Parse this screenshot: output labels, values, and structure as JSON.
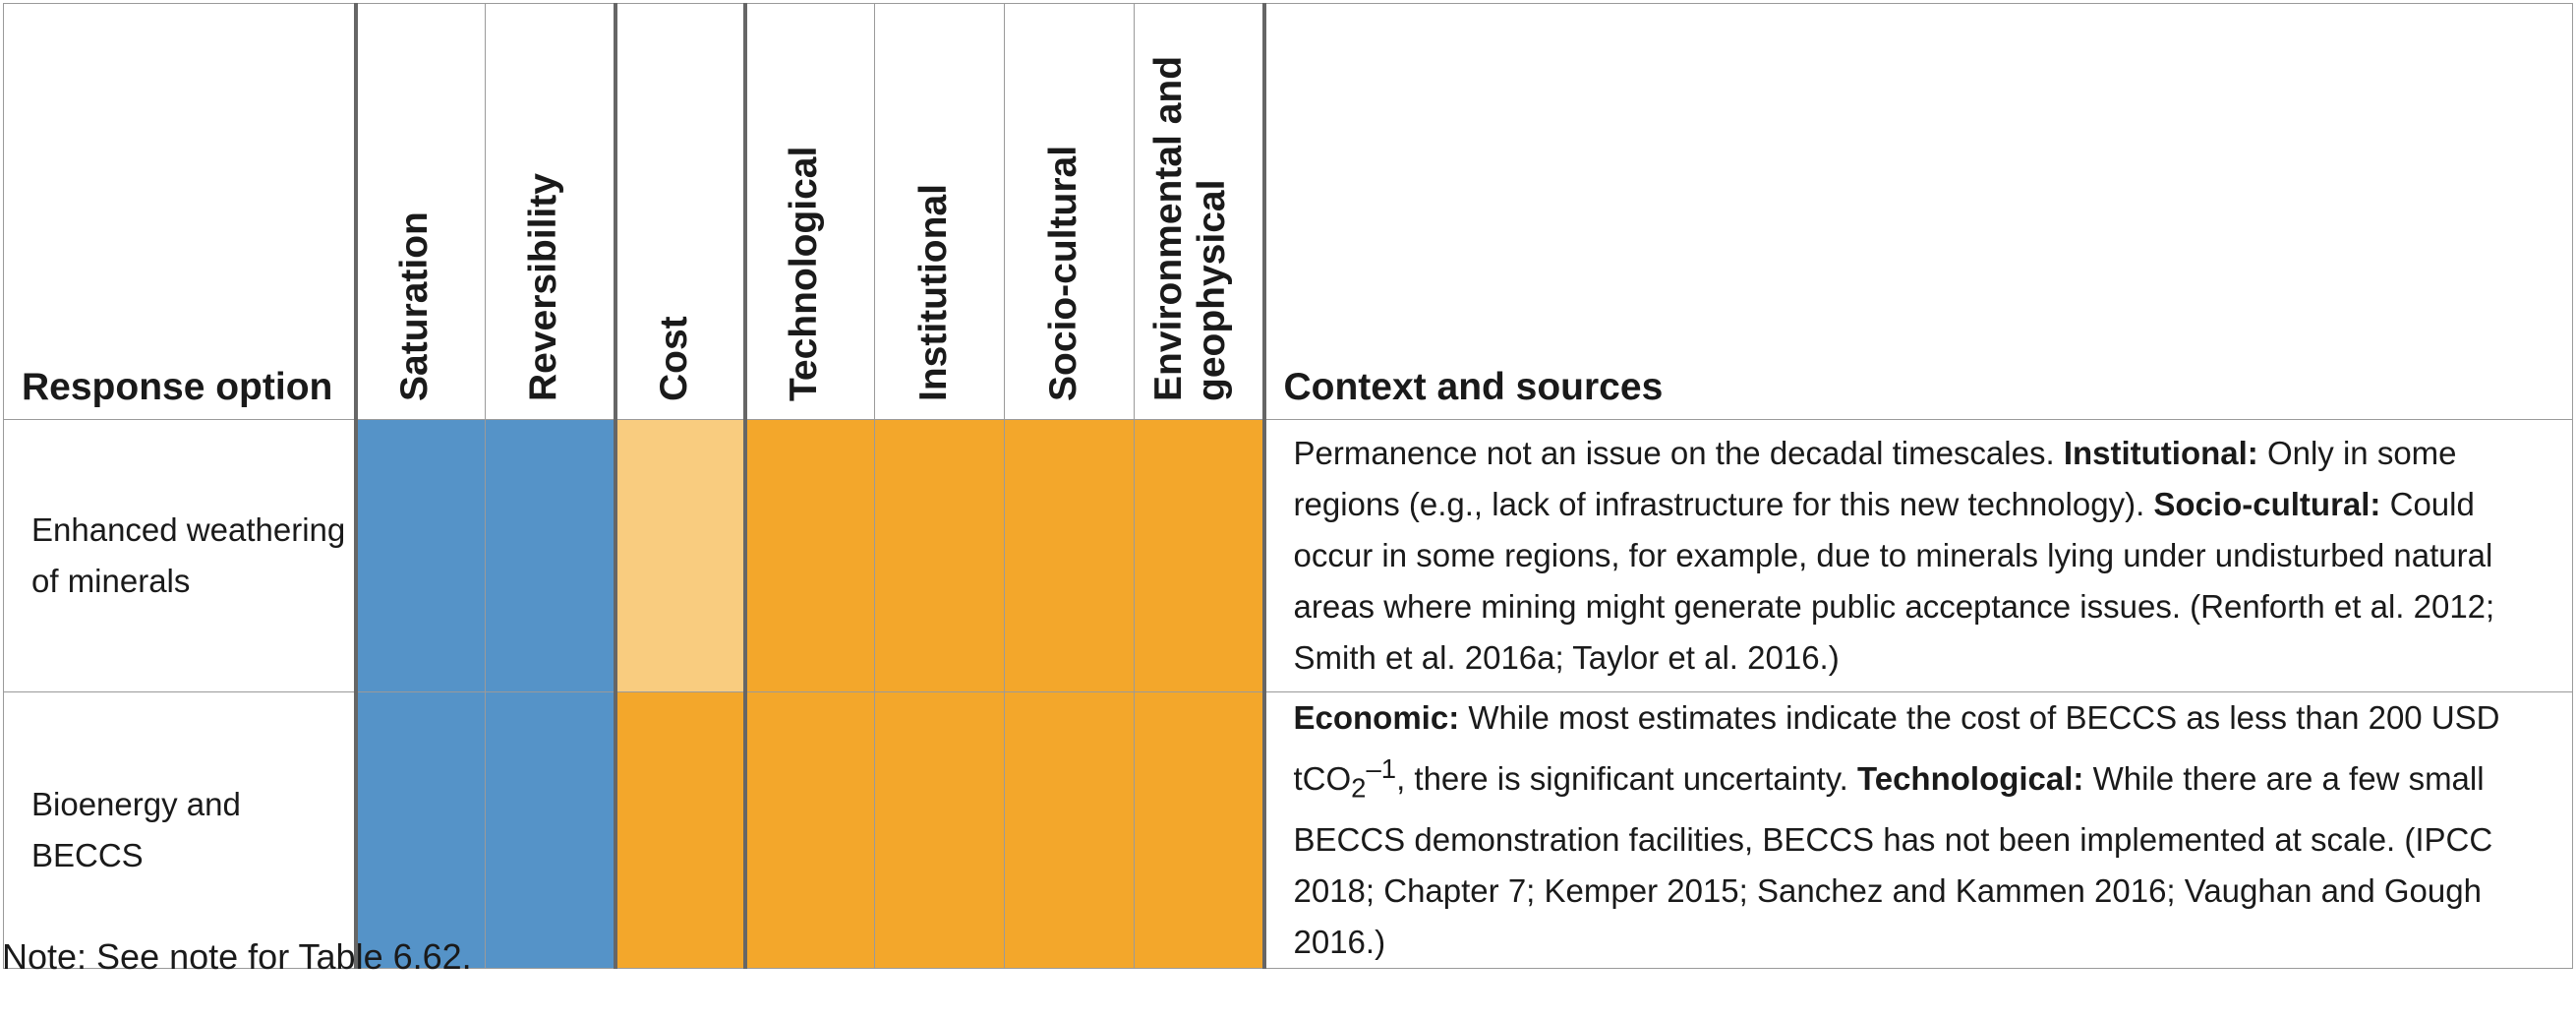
{
  "colors": {
    "blue": "#5593c8",
    "light_orange": "#f9cc7f",
    "orange": "#f3a72b"
  },
  "header": {
    "response_option": "Response option",
    "saturation": "Saturation",
    "reversibility": "Reversibility",
    "cost": "Cost",
    "technological": "Technological",
    "institutional": "Institutional",
    "socio_cultural": "Socio-cultural",
    "environmental_line1": "Environmental and",
    "environmental_line2": "geophysical",
    "context": "Context and sources"
  },
  "rows": [
    {
      "option_line1": "Enhanced weathering",
      "option_line2": "of minerals",
      "cells": [
        "blue",
        "blue",
        "light_orange",
        "orange",
        "orange",
        "orange",
        "orange"
      ],
      "context": {
        "p1": "Permanence not an issue on the decadal timescales. ",
        "b1": "Institutional:",
        "p2": " Only in some regions (e.g., lack of infrastructure for this new technology). ",
        "b2": "Socio-cultural:",
        "p3": " Could occur in some regions, for example, due to minerals lying under undisturbed natural areas where mining might generate public acceptance issues. (Renforth et al. 2012; Smith et al. 2016a; Taylor et al. 2016.)"
      }
    },
    {
      "option_line1": "Bioenergy and BECCS",
      "option_line2": "",
      "cells": [
        "blue",
        "blue",
        "orange",
        "orange",
        "orange",
        "orange",
        "orange"
      ],
      "context": {
        "b1": "Economic:",
        "p1": " While most estimates indicate the cost of BECCS as less than 200 USD tCO",
        "sub": "2",
        "sup": "–1",
        "p2": ", there is significant uncertainty. ",
        "b2": "Technological:",
        "p3": " While there are a few small BECCS demonstration facilities, BECCS has not been implemented at scale. (IPCC 2018; Chapter 7; Kemper 2015; Sanchez and Kammen 2016; Vaughan and Gough 2016.)"
      }
    }
  ],
  "note": "Note: See note for Table 6.62."
}
